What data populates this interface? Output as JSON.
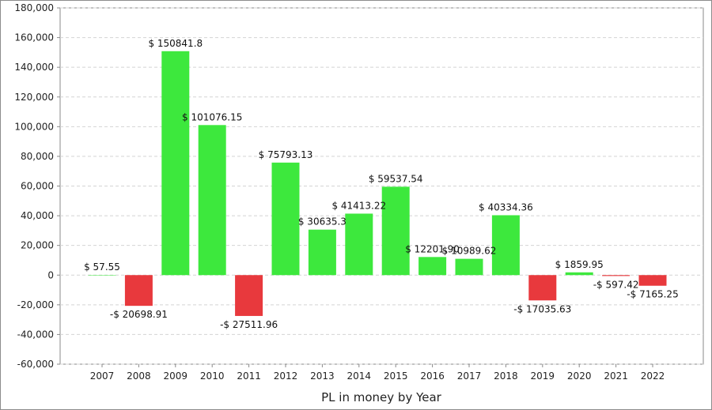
{
  "chart_data": {
    "type": "bar",
    "xlabel": "PL in money by Year",
    "ylabel": "",
    "ylim": [
      -60000,
      180000
    ],
    "y_ticks": [
      "180,000",
      "160,000",
      "140,000",
      "120,000",
      "100,000",
      "80,000",
      "60,000",
      "40,000",
      "20,000",
      "0",
      "-20,000",
      "-40,000",
      "-60,000"
    ],
    "categories": [
      "2007",
      "2008",
      "2009",
      "2010",
      "2011",
      "2012",
      "2013",
      "2014",
      "2015",
      "2016",
      "2017",
      "2018",
      "2019",
      "2020",
      "2021",
      "2022"
    ],
    "values": [
      57.55,
      -20698.91,
      150841.8,
      101076.15,
      -27511.96,
      75793.13,
      30635.3,
      41413.22,
      59537.54,
      12201.9,
      10989.62,
      40334.36,
      -17035.63,
      1859.95,
      -597.42,
      -7165.25
    ],
    "data_labels": [
      "$ 57.55",
      "-$ 20698.91",
      "$ 150841.8",
      "$ 101076.15",
      "-$ 27511.96",
      "$ 75793.13",
      "$ 30635.3",
      "$ 41413.22",
      "$ 59537.54",
      "$ 12201.90",
      "$ 10989.62",
      "$ 40334.36",
      "-$ 17035.63",
      "$ 1859.95",
      "-$ 597.42",
      "-$ 7165.25"
    ],
    "grid": true,
    "colors": {
      "positive": "#3de83d",
      "negative": "#e8393d"
    }
  }
}
